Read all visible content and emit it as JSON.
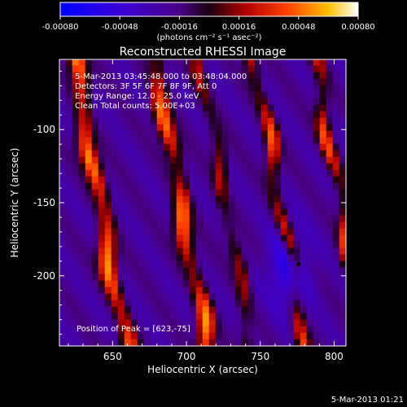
{
  "chart_data": {
    "type": "heatmap",
    "title": "Reconstructed RHESSI Image",
    "xlabel": "Heliocentric X (arcsec)",
    "ylabel": "Heliocentric Y (arcsec)",
    "xlim": [
      614,
      808
    ],
    "ylim": [
      -248,
      -52
    ],
    "x_ticks": [
      650,
      700,
      750,
      800
    ],
    "y_ticks": [
      -100,
      -150,
      -200
    ],
    "colorbar": {
      "range": [
        -0.0008,
        0.0008
      ],
      "ticks": [
        "-0.00080",
        "-0.00048",
        "-0.00016",
        "0.00016",
        "0.00048",
        "0.00080"
      ],
      "label": "(photons cm⁻² s⁻¹ asec⁻²)"
    },
    "info_lines": [
      "5-Mar-2013 03:45:48.000 to 03:48:04.000",
      "Detectors: 3F 5F 6F 7F 8F 9F, Att 0",
      "Energy Range: 12.0 - 25.0 keV",
      "Clean    Total counts: 5.00E+03"
    ],
    "peak_label": "Position of Peak = [623,-75]",
    "peak": [
      623,
      -75
    ],
    "marker": [
      776,
      -192
    ],
    "bands": [
      {
        "x0": 628,
        "slope": -0.18,
        "width": 6,
        "amp": 0.0008
      },
      {
        "x0": 683,
        "slope": -0.18,
        "width": 6,
        "amp": 0.00074
      },
      {
        "x0": 713,
        "slope": -0.18,
        "width": 5,
        "amp": 0.0004
      },
      {
        "x0": 750,
        "slope": -0.18,
        "width": 5,
        "amp": 0.0006
      },
      {
        "x0": 791,
        "slope": -0.18,
        "width": 5,
        "amp": 0.00058
      }
    ],
    "timestamp": "5-Mar-2013 01:21"
  }
}
